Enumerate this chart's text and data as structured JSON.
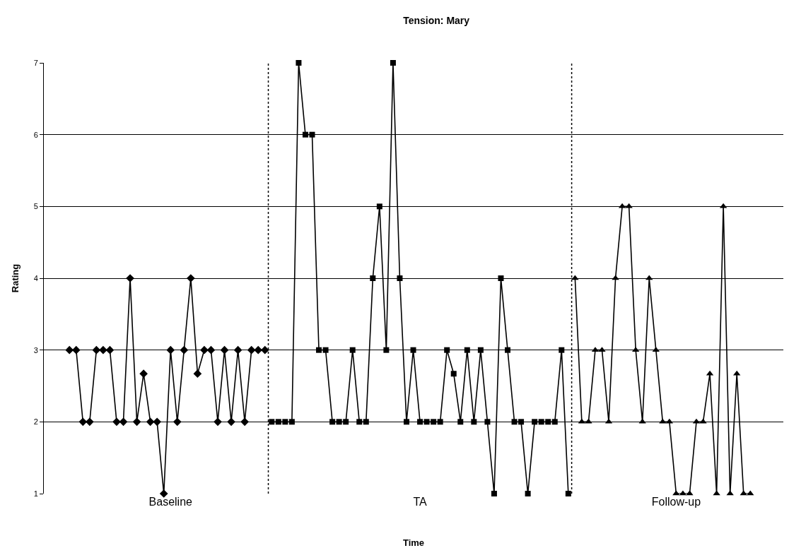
{
  "chart_data": {
    "type": "line",
    "title": "Tension: Mary",
    "xlabel": "Time",
    "ylabel": "Rating",
    "categories": [
      null,
      null,
      null,
      null,
      null,
      null,
      null,
      null,
      null,
      null,
      null,
      null,
      null,
      null,
      null,
      "Baseline",
      null,
      null,
      null,
      null,
      null,
      null,
      null,
      null,
      null,
      null,
      null,
      null,
      null,
      null,
      null,
      null,
      null,
      null,
      null,
      null,
      null,
      null,
      null,
      null,
      null,
      null,
      null,
      null,
      null,
      null,
      null,
      null,
      null,
      null,
      null,
      null,
      "TA",
      null,
      null,
      null,
      null,
      null,
      null,
      null,
      null,
      null,
      null,
      null,
      null,
      null,
      null,
      null,
      null,
      null,
      null,
      null,
      null,
      null,
      null,
      null,
      null,
      null,
      null,
      null,
      null,
      null,
      null,
      null,
      null,
      null,
      null,
      null,
      null,
      null,
      "Follow-up",
      null,
      null,
      null,
      null,
      null,
      null,
      null,
      null,
      null,
      null,
      null
    ],
    "series": [
      {
        "color": "#000000",
        "marker": "diamond",
        "values": [
          3,
          3,
          2,
          2,
          3,
          3,
          3,
          2,
          2,
          4,
          2,
          2.67,
          2,
          2,
          1,
          3,
          2,
          3,
          4,
          2.67,
          3,
          3,
          2,
          3,
          2,
          3,
          2,
          3,
          3,
          3,
          null,
          null,
          null,
          null,
          null,
          null,
          null,
          null,
          null,
          null,
          null,
          null,
          null,
          null,
          null,
          null,
          null,
          null,
          null,
          null,
          null,
          null,
          null,
          null,
          null,
          null,
          null,
          null,
          null,
          null,
          null,
          null,
          null,
          null,
          null,
          null,
          null,
          null,
          null,
          null,
          null,
          null,
          null,
          null,
          null,
          null,
          null,
          null,
          null,
          null,
          null,
          null,
          null,
          null,
          null,
          null,
          null,
          null,
          null,
          null,
          null,
          null,
          null,
          null,
          null,
          null,
          null,
          null,
          null,
          null,
          null,
          null
        ]
      },
      {
        "color": "#000000",
        "marker": "square",
        "values": [
          null,
          null,
          null,
          null,
          null,
          null,
          null,
          null,
          null,
          null,
          null,
          null,
          null,
          null,
          null,
          null,
          null,
          null,
          null,
          null,
          null,
          null,
          null,
          null,
          null,
          null,
          null,
          null,
          null,
          null,
          2,
          2,
          2,
          2,
          7,
          6,
          6,
          3,
          3,
          2,
          2,
          2,
          3,
          2,
          2,
          4,
          5,
          3,
          7,
          4,
          2,
          3,
          2,
          2,
          2,
          2,
          3,
          2.67,
          2,
          3,
          2,
          3,
          2,
          1,
          4,
          3,
          2,
          2,
          1,
          2,
          2,
          2,
          2,
          3,
          1,
          null,
          null,
          null,
          null,
          null,
          null,
          null,
          null,
          null,
          null,
          null,
          null,
          null,
          null,
          null,
          null,
          null,
          null,
          null,
          null,
          null,
          null,
          null,
          null,
          null,
          null,
          null
        ]
      },
      {
        "color": "#000000",
        "marker": "triangle",
        "values": [
          null,
          null,
          null,
          null,
          null,
          null,
          null,
          null,
          null,
          null,
          null,
          null,
          null,
          null,
          null,
          null,
          null,
          null,
          null,
          null,
          null,
          null,
          null,
          null,
          null,
          null,
          null,
          null,
          null,
          null,
          null,
          null,
          null,
          null,
          null,
          null,
          null,
          null,
          null,
          null,
          null,
          null,
          null,
          null,
          null,
          null,
          null,
          null,
          null,
          null,
          null,
          null,
          null,
          null,
          null,
          null,
          null,
          null,
          null,
          null,
          null,
          null,
          null,
          null,
          null,
          null,
          null,
          null,
          null,
          null,
          null,
          null,
          null,
          null,
          null,
          4,
          2,
          2,
          3,
          3,
          2,
          4,
          5,
          5,
          3,
          2,
          4,
          3,
          2,
          2,
          1,
          1,
          1,
          2,
          2,
          2.67,
          1,
          5,
          1,
          2.67,
          1,
          1
        ]
      }
    ],
    "ylim": [
      1,
      7
    ],
    "yticks": [
      1,
      2,
      3,
      4,
      5,
      6,
      7
    ],
    "grid": "y",
    "line_style": "solid"
  }
}
